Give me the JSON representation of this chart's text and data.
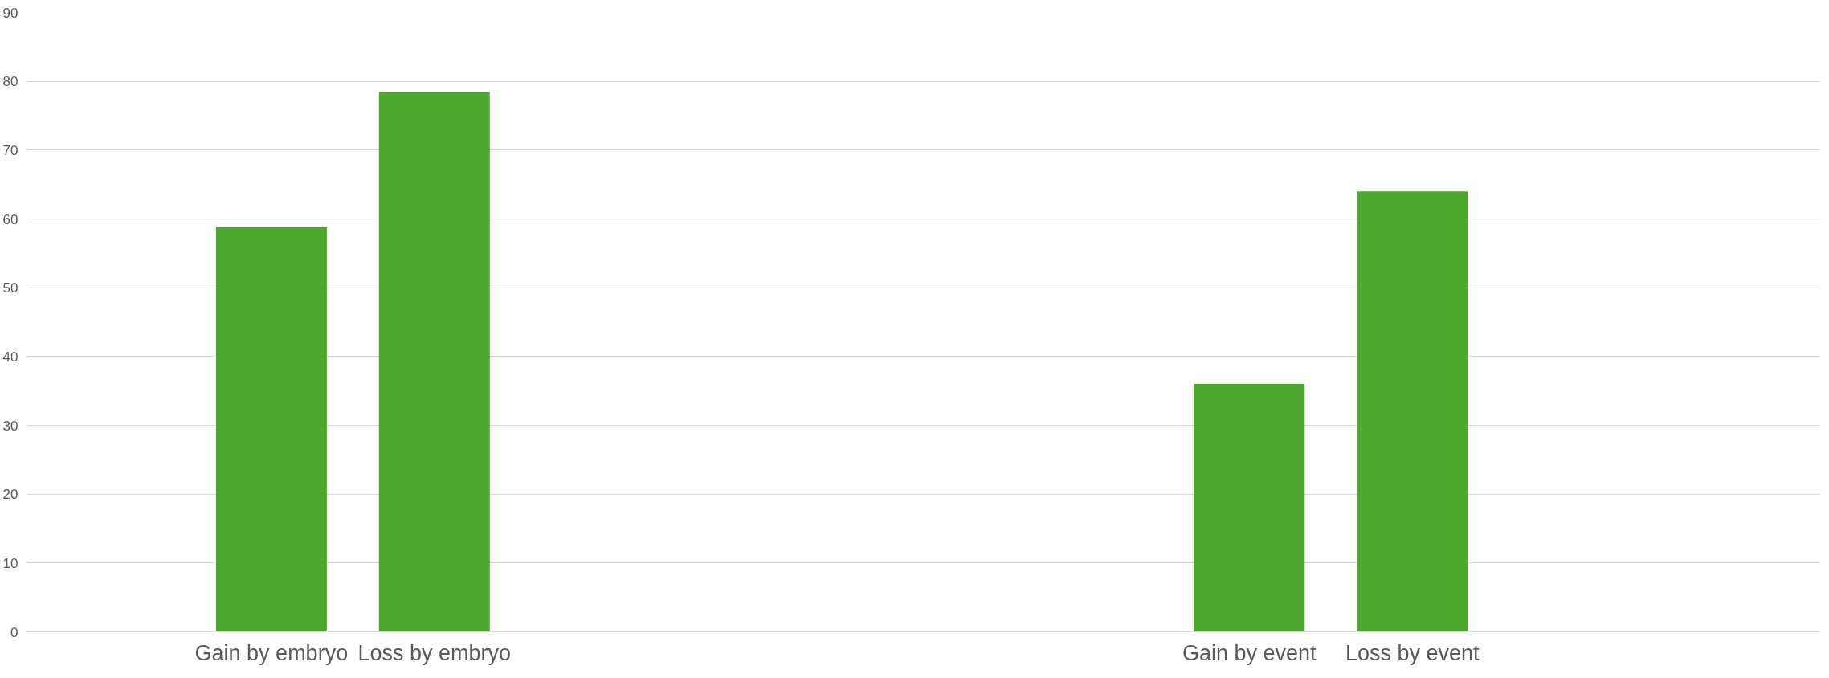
{
  "chart_data": {
    "type": "bar",
    "categories": [
      null,
      "Gain by embryo",
      "Loss by embryo",
      null,
      null,
      null,
      null,
      "Gain by event",
      "Loss by event",
      null,
      null
    ],
    "values": [
      null,
      58.8,
      78.4,
      null,
      null,
      null,
      null,
      36,
      64,
      null,
      null
    ],
    "color": "#4ea72e",
    "ylim": [
      0,
      90
    ],
    "yticks": [
      0,
      10,
      20,
      30,
      40,
      50,
      60,
      70,
      80,
      90
    ],
    "grid": "y"
  }
}
